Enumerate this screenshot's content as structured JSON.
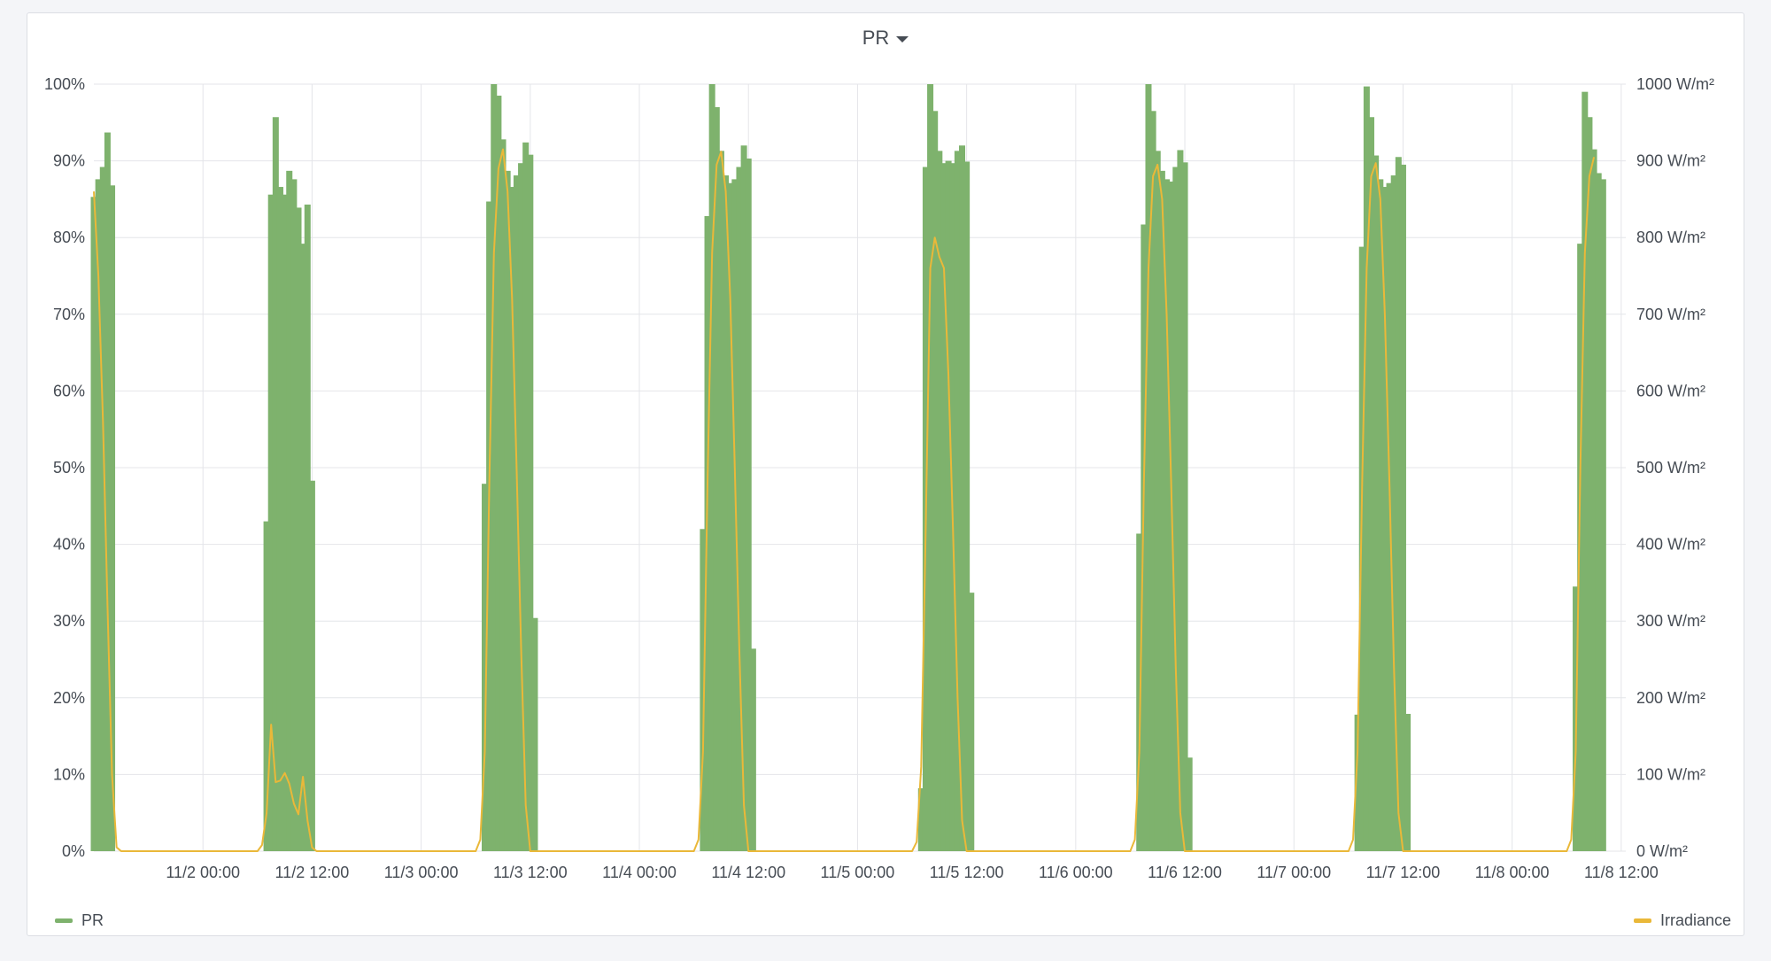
{
  "panel": {
    "title": "PR"
  },
  "colors": {
    "pr": "#7eb26d",
    "irradiance": "#eab839",
    "grid": "#e4e5e9"
  },
  "legend": {
    "left": "PR",
    "right": "Irradiance"
  },
  "chart_data": {
    "type": "bar+line",
    "x_axis": {
      "min": "11/1 12:00",
      "max": "11/8 12:30",
      "ticks": [
        "11/2 00:00",
        "11/2 12:00",
        "11/3 00:00",
        "11/3 12:00",
        "11/4 00:00",
        "11/4 12:00",
        "11/5 00:00",
        "11/5 12:00",
        "11/6 00:00",
        "11/6 12:00",
        "11/7 00:00",
        "11/7 12:00",
        "11/8 00:00",
        "11/8 12:00"
      ]
    },
    "y_left": {
      "min": 0,
      "max": 100,
      "unit": "%",
      "ticks": [
        "0%",
        "10%",
        "20%",
        "30%",
        "40%",
        "50%",
        "60%",
        "70%",
        "80%",
        "90%",
        "100%"
      ]
    },
    "y_right": {
      "min": 0,
      "max": 1000,
      "unit": "W/m²",
      "ticks": [
        "0 W/m²",
        "100 W/m²",
        "200 W/m²",
        "300 W/m²",
        "400 W/m²",
        "500 W/m²",
        "600 W/m²",
        "700 W/m²",
        "800 W/m²",
        "900 W/m²",
        "1000 W/m²"
      ]
    },
    "grid": true,
    "legend_placement": "bottom",
    "series": [
      {
        "name": "PR",
        "type": "bar",
        "axis": "left",
        "points": [
          [
            "11/1 12:00",
            85.3
          ],
          [
            "11/1 12:30",
            87.6
          ],
          [
            "11/1 13:00",
            89.2
          ],
          [
            "11/1 13:30",
            93.7
          ],
          [
            "11/1 14:00",
            86.8
          ],
          [
            "11/2 07:00",
            43.0
          ],
          [
            "11/2 07:30",
            85.6
          ],
          [
            "11/2 08:00",
            95.7
          ],
          [
            "11/2 08:30",
            86.6
          ],
          [
            "11/2 09:00",
            85.6
          ],
          [
            "11/2 09:30",
            88.7
          ],
          [
            "11/2 10:00",
            87.6
          ],
          [
            "11/2 10:30",
            83.9
          ],
          [
            "11/2 11:00",
            79.2
          ],
          [
            "11/2 11:30",
            84.3
          ],
          [
            "11/2 12:00",
            48.3
          ],
          [
            "11/3 07:00",
            47.9
          ],
          [
            "11/3 07:30",
            84.7
          ],
          [
            "11/3 08:00",
            100
          ],
          [
            "11/3 08:30",
            98.5
          ],
          [
            "11/3 09:00",
            92.8
          ],
          [
            "11/3 09:30",
            88.7
          ],
          [
            "11/3 10:00",
            86.6
          ],
          [
            "11/3 10:30",
            88.1
          ],
          [
            "11/3 11:00",
            89.7
          ],
          [
            "11/3 11:30",
            92.4
          ],
          [
            "11/3 12:00",
            90.8
          ],
          [
            "11/3 12:30",
            30.4
          ],
          [
            "11/4 07:00",
            42.0
          ],
          [
            "11/4 07:30",
            82.8
          ],
          [
            "11/4 08:00",
            100
          ],
          [
            "11/4 08:30",
            97.0
          ],
          [
            "11/4 09:00",
            91.3
          ],
          [
            "11/4 09:30",
            88.1
          ],
          [
            "11/4 10:00",
            87.1
          ],
          [
            "11/4 10:30",
            87.6
          ],
          [
            "11/4 11:00",
            89.2
          ],
          [
            "11/4 11:30",
            92.0
          ],
          [
            "11/4 12:00",
            90.3
          ],
          [
            "11/4 12:30",
            26.4
          ],
          [
            "11/5 07:00",
            8.2
          ],
          [
            "11/5 07:30",
            89.2
          ],
          [
            "11/5 08:00",
            100
          ],
          [
            "11/5 08:30",
            96.5
          ],
          [
            "11/5 09:00",
            91.3
          ],
          [
            "11/5 09:30",
            89.7
          ],
          [
            "11/5 10:00",
            90.0
          ],
          [
            "11/5 10:30",
            89.7
          ],
          [
            "11/5 11:00",
            91.3
          ],
          [
            "11/5 11:30",
            92.0
          ],
          [
            "11/5 12:00",
            89.9
          ],
          [
            "11/5 12:30",
            33.7
          ],
          [
            "11/6 07:00",
            41.4
          ],
          [
            "11/6 07:30",
            81.7
          ],
          [
            "11/6 08:00",
            100
          ],
          [
            "11/6 08:30",
            96.5
          ],
          [
            "11/6 09:00",
            91.3
          ],
          [
            "11/6 09:30",
            88.7
          ],
          [
            "11/6 10:00",
            87.6
          ],
          [
            "11/6 10:30",
            87.3
          ],
          [
            "11/6 11:00",
            89.2
          ],
          [
            "11/6 11:30",
            91.4
          ],
          [
            "11/6 12:00",
            89.8
          ],
          [
            "11/6 12:30",
            12.2
          ],
          [
            "11/7 07:00",
            17.8
          ],
          [
            "11/7 07:30",
            78.8
          ],
          [
            "11/7 08:00",
            99.7
          ],
          [
            "11/7 08:30",
            95.7
          ],
          [
            "11/7 09:00",
            90.7
          ],
          [
            "11/7 09:30",
            87.6
          ],
          [
            "11/7 10:00",
            86.6
          ],
          [
            "11/7 10:30",
            87.1
          ],
          [
            "11/7 11:00",
            88.1
          ],
          [
            "11/7 11:30",
            90.5
          ],
          [
            "11/7 12:00",
            89.5
          ],
          [
            "11/7 12:30",
            17.9
          ],
          [
            "11/8 07:00",
            34.5
          ],
          [
            "11/8 07:30",
            79.2
          ],
          [
            "11/8 08:00",
            99.0
          ],
          [
            "11/8 08:30",
            95.7
          ],
          [
            "11/8 09:00",
            91.5
          ],
          [
            "11/8 09:30",
            88.4
          ],
          [
            "11/8 10:00",
            87.6
          ]
        ]
      },
      {
        "name": "Irradiance",
        "type": "line",
        "axis": "right",
        "points": [
          [
            "11/1 12:00",
            860
          ],
          [
            "11/1 12:30",
            750
          ],
          [
            "11/1 13:00",
            560
          ],
          [
            "11/1 13:30",
            320
          ],
          [
            "11/1 14:00",
            100
          ],
          [
            "11/1 14:30",
            5
          ],
          [
            "11/1 15:00",
            0
          ],
          [
            "11/2 06:00",
            0
          ],
          [
            "11/2 06:30",
            8
          ],
          [
            "11/2 07:00",
            50
          ],
          [
            "11/2 07:30",
            165
          ],
          [
            "11/2 08:00",
            90
          ],
          [
            "11/2 08:30",
            92
          ],
          [
            "11/2 09:00",
            102
          ],
          [
            "11/2 09:30",
            88
          ],
          [
            "11/2 10:00",
            62
          ],
          [
            "11/2 10:30",
            48
          ],
          [
            "11/2 11:00",
            97
          ],
          [
            "11/2 11:30",
            40
          ],
          [
            "11/2 12:00",
            5
          ],
          [
            "11/2 12:30",
            0
          ],
          [
            "11/3 06:00",
            0
          ],
          [
            "11/3 06:30",
            15
          ],
          [
            "11/3 07:00",
            130
          ],
          [
            "11/3 07:30",
            480
          ],
          [
            "11/3 08:00",
            780
          ],
          [
            "11/3 08:30",
            890
          ],
          [
            "11/3 09:00",
            915
          ],
          [
            "11/3 09:30",
            860
          ],
          [
            "11/3 10:00",
            720
          ],
          [
            "11/3 10:30",
            500
          ],
          [
            "11/3 11:00",
            260
          ],
          [
            "11/3 11:30",
            60
          ],
          [
            "11/3 12:00",
            0
          ],
          [
            "11/4 06:00",
            0
          ],
          [
            "11/4 06:30",
            15
          ],
          [
            "11/4 07:00",
            130
          ],
          [
            "11/4 07:30",
            480
          ],
          [
            "11/4 08:00",
            780
          ],
          [
            "11/4 08:30",
            895
          ],
          [
            "11/4 09:00",
            912
          ],
          [
            "11/4 09:30",
            860
          ],
          [
            "11/4 10:00",
            720
          ],
          [
            "11/4 10:30",
            500
          ],
          [
            "11/4 11:00",
            260
          ],
          [
            "11/4 11:30",
            60
          ],
          [
            "11/4 12:00",
            0
          ],
          [
            "11/5 06:00",
            0
          ],
          [
            "11/5 06:30",
            12
          ],
          [
            "11/5 07:00",
            110
          ],
          [
            "11/5 07:30",
            420
          ],
          [
            "11/5 08:00",
            760
          ],
          [
            "11/5 08:30",
            800
          ],
          [
            "11/5 09:00",
            775
          ],
          [
            "11/5 09:30",
            760
          ],
          [
            "11/5 10:00",
            620
          ],
          [
            "11/5 10:30",
            420
          ],
          [
            "11/5 11:00",
            200
          ],
          [
            "11/5 11:30",
            40
          ],
          [
            "11/5 12:00",
            0
          ],
          [
            "11/6 06:00",
            0
          ],
          [
            "11/6 06:30",
            15
          ],
          [
            "11/6 07:00",
            130
          ],
          [
            "11/6 07:30",
            480
          ],
          [
            "11/6 08:00",
            760
          ],
          [
            "11/6 08:30",
            880
          ],
          [
            "11/6 09:00",
            895
          ],
          [
            "11/6 09:30",
            850
          ],
          [
            "11/6 10:00",
            700
          ],
          [
            "11/6 10:30",
            480
          ],
          [
            "11/6 11:00",
            240
          ],
          [
            "11/6 11:30",
            50
          ],
          [
            "11/6 12:00",
            0
          ],
          [
            "11/7 06:00",
            0
          ],
          [
            "11/7 06:30",
            15
          ],
          [
            "11/7 07:00",
            130
          ],
          [
            "11/7 07:30",
            480
          ],
          [
            "11/7 08:00",
            760
          ],
          [
            "11/7 08:30",
            880
          ],
          [
            "11/7 09:00",
            897
          ],
          [
            "11/7 09:30",
            850
          ],
          [
            "11/7 10:00",
            700
          ],
          [
            "11/7 10:30",
            480
          ],
          [
            "11/7 11:00",
            240
          ],
          [
            "11/7 11:30",
            50
          ],
          [
            "11/7 12:00",
            0
          ],
          [
            "11/8 06:00",
            0
          ],
          [
            "11/8 06:30",
            15
          ],
          [
            "11/8 07:00",
            130
          ],
          [
            "11/8 07:30",
            500
          ],
          [
            "11/8 08:00",
            780
          ],
          [
            "11/8 08:30",
            880
          ],
          [
            "11/8 09:00",
            905
          ]
        ]
      }
    ]
  }
}
